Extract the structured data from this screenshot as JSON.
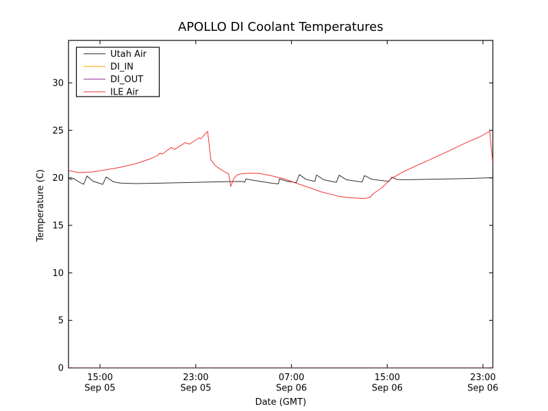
{
  "chart_data": {
    "type": "line",
    "title": "APOLLO DI Coolant Temperatures",
    "xlabel": "Date (GMT)",
    "ylabel": "Temperature (C)",
    "grid": false,
    "legend_position": "upper left",
    "x_unit": "hours since Sep 05 00:00 GMT",
    "xlim": [
      12.37,
      47.83
    ],
    "ylim": [
      0,
      34.5
    ],
    "y_ticks": [
      0,
      5,
      10,
      15,
      20,
      25,
      30
    ],
    "x_ticks": [
      {
        "hour": 15,
        "time": "15:00",
        "date": "Sep 05"
      },
      {
        "hour": 23,
        "time": "23:00",
        "date": "Sep 05"
      },
      {
        "hour": 31,
        "time": "07:00",
        "date": "Sep 06"
      },
      {
        "hour": 39,
        "time": "15:00",
        "date": "Sep 06"
      },
      {
        "hour": 47,
        "time": "23:00",
        "date": "Sep 06"
      }
    ],
    "series": [
      {
        "name": "Utah Air",
        "color": "#1a1a1a",
        "points": [
          [
            12.37,
            20.05
          ],
          [
            12.54,
            19.82
          ],
          [
            12.77,
            19.95
          ],
          [
            13.2,
            19.6
          ],
          [
            13.63,
            19.32
          ],
          [
            13.91,
            20.2
          ],
          [
            14.4,
            19.65
          ],
          [
            15.23,
            19.32
          ],
          [
            15.52,
            20.1
          ],
          [
            16.1,
            19.6
          ],
          [
            16.66,
            19.45
          ],
          [
            18,
            19.4
          ],
          [
            20,
            19.44
          ],
          [
            22,
            19.5
          ],
          [
            24,
            19.56
          ],
          [
            25.5,
            19.6
          ],
          [
            26.8,
            19.62
          ],
          [
            27.1,
            19.56
          ],
          [
            27.2,
            19.88
          ],
          [
            27.54,
            19.8
          ],
          [
            28.4,
            19.62
          ],
          [
            29.3,
            19.45
          ],
          [
            29.9,
            19.36
          ],
          [
            30.0,
            19.9
          ],
          [
            30.6,
            19.65
          ],
          [
            31.4,
            19.5
          ],
          [
            31.66,
            20.35
          ],
          [
            32.2,
            19.85
          ],
          [
            32.95,
            19.62
          ],
          [
            33.09,
            20.3
          ],
          [
            33.7,
            19.8
          ],
          [
            34.75,
            19.52
          ],
          [
            34.98,
            20.28
          ],
          [
            35.6,
            19.8
          ],
          [
            36.9,
            19.56
          ],
          [
            37.1,
            20.24
          ],
          [
            37.7,
            19.85
          ],
          [
            39.15,
            19.62
          ],
          [
            39.39,
            20.08
          ],
          [
            39.8,
            19.83
          ],
          [
            40.5,
            19.8
          ],
          [
            42,
            19.84
          ],
          [
            44,
            19.89
          ],
          [
            46,
            19.94
          ],
          [
            47.83,
            20.02
          ]
        ]
      },
      {
        "name": "DI_IN",
        "color": "#ffa500",
        "points": [
          [
            12.37,
            0
          ],
          [
            47.83,
            0
          ]
        ]
      },
      {
        "name": "DI_OUT",
        "color": "#993399",
        "points": [
          [
            12.37,
            0
          ],
          [
            47.83,
            0
          ]
        ]
      },
      {
        "name": "ILE Air",
        "color": "#f02020",
        "points": [
          [
            12.37,
            20.78
          ],
          [
            13.2,
            20.55
          ],
          [
            14.3,
            20.62
          ],
          [
            15.5,
            20.85
          ],
          [
            16.66,
            21.1
          ],
          [
            18,
            21.5
          ],
          [
            19.2,
            22.0
          ],
          [
            19.81,
            22.35
          ],
          [
            20.0,
            22.6
          ],
          [
            20.2,
            22.5
          ],
          [
            20.95,
            23.2
          ],
          [
            21.24,
            23.0
          ],
          [
            22.1,
            23.7
          ],
          [
            22.5,
            23.55
          ],
          [
            23.24,
            24.2
          ],
          [
            23.41,
            24.1
          ],
          [
            23.99,
            24.9
          ],
          [
            24.27,
            21.9
          ],
          [
            24.62,
            21.3
          ],
          [
            24.96,
            21.0
          ],
          [
            25.53,
            20.55
          ],
          [
            25.75,
            20.4
          ],
          [
            25.93,
            19.1
          ],
          [
            26.2,
            20.0
          ],
          [
            26.51,
            20.35
          ],
          [
            27.0,
            20.45
          ],
          [
            27.54,
            20.5
          ],
          [
            28.4,
            20.45
          ],
          [
            29.4,
            20.2
          ],
          [
            30.4,
            19.9
          ],
          [
            31.26,
            19.5
          ],
          [
            32.2,
            19.1
          ],
          [
            33.55,
            18.5
          ],
          [
            34.69,
            18.15
          ],
          [
            34.98,
            18.05
          ],
          [
            35.6,
            17.95
          ],
          [
            36.41,
            17.88
          ],
          [
            37.1,
            17.82
          ],
          [
            37.55,
            17.95
          ],
          [
            37.9,
            18.4
          ],
          [
            38.6,
            19.0
          ],
          [
            39.27,
            19.85
          ],
          [
            40.19,
            20.55
          ],
          [
            41.56,
            21.35
          ],
          [
            42.71,
            22.0
          ],
          [
            44.42,
            23.0
          ],
          [
            45.57,
            23.7
          ],
          [
            46.71,
            24.3
          ],
          [
            47.57,
            24.9
          ],
          [
            47.69,
            23.2
          ],
          [
            47.83,
            21.6
          ]
        ]
      }
    ]
  }
}
